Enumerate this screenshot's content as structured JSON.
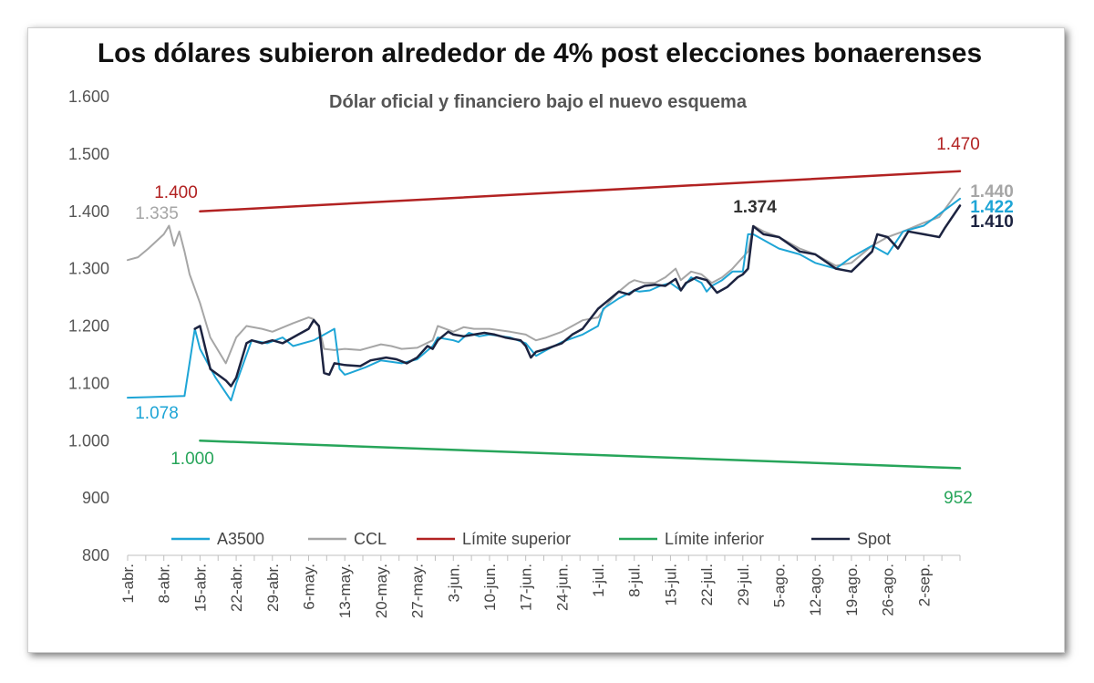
{
  "chart_data": {
    "type": "line",
    "title": "Los dólares subieron alrededor de 4% post elecciones bonaerenses",
    "subtitle": "Dólar oficial y financiero bajo el nuevo esquema",
    "ylim": [
      800,
      1600
    ],
    "ytick_values": [
      800,
      900,
      1000,
      1100,
      1200,
      1300,
      1400,
      1500,
      1600
    ],
    "ytick_labels": [
      "800",
      "900",
      "1.000",
      "1.100",
      "1.200",
      "1.300",
      "1.400",
      "1.500",
      "1.600"
    ],
    "x_day_range": [
      0,
      161
    ],
    "xtick_days": [
      0,
      7,
      14,
      21,
      28,
      35,
      42,
      49,
      56,
      63,
      70,
      77,
      84,
      91,
      98,
      105,
      112,
      119,
      126,
      133,
      140,
      147,
      154
    ],
    "xtick_labels": [
      "1-abr.",
      "8-abr.",
      "15-abr.",
      "22-abr.",
      "29-abr.",
      "6-may.",
      "13-may.",
      "20-may.",
      "27-may.",
      "3-jun.",
      "10-jun.",
      "17-jun.",
      "24-jun.",
      "1-jul.",
      "8-jul.",
      "15-jul.",
      "22-jul.",
      "29-jul.",
      "5-ago.",
      "12-ago.",
      "19-ago.",
      "26-ago.",
      "2-sep."
    ],
    "legend": {
      "placement": "bottom"
    },
    "series": [
      {
        "key": "a3500",
        "name": "A3500",
        "color": "#1ea5d6",
        "width": 2,
        "x": [
          0,
          4,
          8,
          11,
          13,
          14,
          17,
          20,
          21,
          24,
          27,
          30,
          32,
          36,
          40,
          41,
          42,
          43,
          46,
          49,
          53,
          56,
          59,
          60,
          63,
          64,
          66,
          68,
          70,
          74,
          77,
          79,
          81,
          84,
          88,
          91,
          92,
          95,
          98,
          99,
          101,
          103,
          105,
          107,
          109,
          111,
          112,
          113,
          115,
          117,
          119,
          120,
          121,
          126,
          130,
          133,
          137,
          140,
          144,
          147,
          150,
          154,
          161
        ],
        "y": [
          1075,
          1076,
          1077,
          1078,
          1195,
          1160,
          1110,
          1070,
          1100,
          1175,
          1170,
          1180,
          1165,
          1175,
          1195,
          1125,
          1115,
          1118,
          1128,
          1140,
          1135,
          1142,
          1165,
          1180,
          1175,
          1172,
          1188,
          1182,
          1185,
          1180,
          1170,
          1148,
          1158,
          1172,
          1185,
          1200,
          1230,
          1248,
          1262,
          1260,
          1262,
          1270,
          1275,
          1262,
          1285,
          1275,
          1260,
          1270,
          1280,
          1295,
          1295,
          1360,
          1360,
          1335,
          1325,
          1310,
          1300,
          1320,
          1340,
          1325,
          1365,
          1375,
          1422
        ]
      },
      {
        "key": "ccl",
        "name": "CCL",
        "color": "#a6a6a6",
        "width": 2,
        "x": [
          0,
          2,
          4,
          7,
          8,
          9,
          10,
          11,
          12,
          14,
          16,
          19,
          21,
          23,
          26,
          28,
          32,
          35,
          36,
          37,
          38,
          40,
          42,
          45,
          49,
          51,
          53,
          56,
          59,
          60,
          63,
          65,
          67,
          70,
          74,
          77,
          78,
          79,
          81,
          84,
          86,
          88,
          91,
          93,
          95,
          97,
          98,
          100,
          102,
          104,
          106,
          107,
          109,
          111,
          113,
          115,
          117,
          119,
          120,
          121,
          123,
          126,
          130,
          133,
          137,
          140,
          144,
          147,
          150,
          154,
          157,
          161
        ],
        "y": [
          1315,
          1320,
          1335,
          1360,
          1375,
          1340,
          1365,
          1330,
          1290,
          1240,
          1180,
          1135,
          1180,
          1200,
          1195,
          1190,
          1205,
          1215,
          1212,
          1200,
          1160,
          1158,
          1160,
          1158,
          1168,
          1165,
          1160,
          1162,
          1175,
          1200,
          1190,
          1198,
          1195,
          1195,
          1190,
          1185,
          1180,
          1175,
          1180,
          1190,
          1200,
          1210,
          1215,
          1240,
          1260,
          1275,
          1280,
          1275,
          1275,
          1285,
          1300,
          1280,
          1295,
          1290,
          1275,
          1285,
          1300,
          1320,
          1330,
          1375,
          1365,
          1355,
          1335,
          1325,
          1305,
          1310,
          1340,
          1355,
          1365,
          1380,
          1390,
          1440
        ]
      },
      {
        "key": "limite_superior",
        "name": "Límite superior",
        "color": "#b22222",
        "width": 2.5,
        "x": [
          14,
          161
        ],
        "y": [
          1400,
          1470
        ]
      },
      {
        "key": "limite_inferior",
        "name": "Límite inferior",
        "color": "#27a55a",
        "width": 2.5,
        "x": [
          14,
          161
        ],
        "y": [
          1000,
          952
        ]
      },
      {
        "key": "spot",
        "name": "Spot",
        "color": "#1c2340",
        "width": 2.5,
        "x": [
          13,
          14,
          16,
          19,
          20,
          21,
          23,
          24,
          26,
          28,
          30,
          33,
          35,
          36,
          37,
          38,
          39,
          40,
          42,
          45,
          47,
          50,
          52,
          54,
          56,
          58,
          59,
          60,
          62,
          63,
          65,
          67,
          69,
          71,
          73,
          76,
          77,
          78,
          79,
          81,
          84,
          86,
          88,
          91,
          93,
          95,
          97,
          98,
          100,
          102,
          104,
          106,
          107,
          108,
          110,
          112,
          114,
          116,
          118,
          119,
          120,
          121,
          123,
          126,
          130,
          133,
          137,
          140,
          144,
          145,
          147,
          149,
          151,
          154,
          157,
          158,
          161
        ],
        "y": [
          1195,
          1200,
          1125,
          1105,
          1095,
          1110,
          1170,
          1175,
          1170,
          1175,
          1170,
          1185,
          1195,
          1210,
          1200,
          1118,
          1115,
          1135,
          1132,
          1130,
          1140,
          1145,
          1142,
          1135,
          1145,
          1165,
          1160,
          1175,
          1190,
          1185,
          1182,
          1185,
          1188,
          1185,
          1180,
          1175,
          1165,
          1145,
          1155,
          1160,
          1170,
          1185,
          1195,
          1230,
          1245,
          1260,
          1255,
          1262,
          1270,
          1272,
          1270,
          1282,
          1262,
          1275,
          1285,
          1280,
          1258,
          1268,
          1285,
          1290,
          1300,
          1374,
          1360,
          1355,
          1330,
          1325,
          1300,
          1295,
          1330,
          1360,
          1355,
          1335,
          1365,
          1360,
          1355,
          1370,
          1410
        ]
      }
    ],
    "annotations": [
      {
        "text": "1.400",
        "value": 1400,
        "color": "#b22222",
        "bold": false
      },
      {
        "text": "1.335",
        "value": 1335,
        "color": "#a6a6a6",
        "bold": false
      },
      {
        "text": "1.078",
        "value": 1078,
        "color": "#1ea5d6",
        "bold": false
      },
      {
        "text": "1.000",
        "value": 1000,
        "color": "#27a55a",
        "bold": false
      },
      {
        "text": "1.374",
        "value": 1374,
        "color": "#333333",
        "bold": true
      },
      {
        "text": "1.470",
        "value": 1470,
        "color": "#b22222",
        "bold": false
      },
      {
        "text": "1.440",
        "value": 1440,
        "color": "#a6a6a6",
        "bold": true
      },
      {
        "text": "1.422",
        "value": 1422,
        "color": "#1ea5d6",
        "bold": true
      },
      {
        "text": "1.410",
        "value": 1410,
        "color": "#1c2340",
        "bold": true
      },
      {
        "text": "952",
        "value": 952,
        "color": "#27a55a",
        "bold": false
      }
    ]
  }
}
